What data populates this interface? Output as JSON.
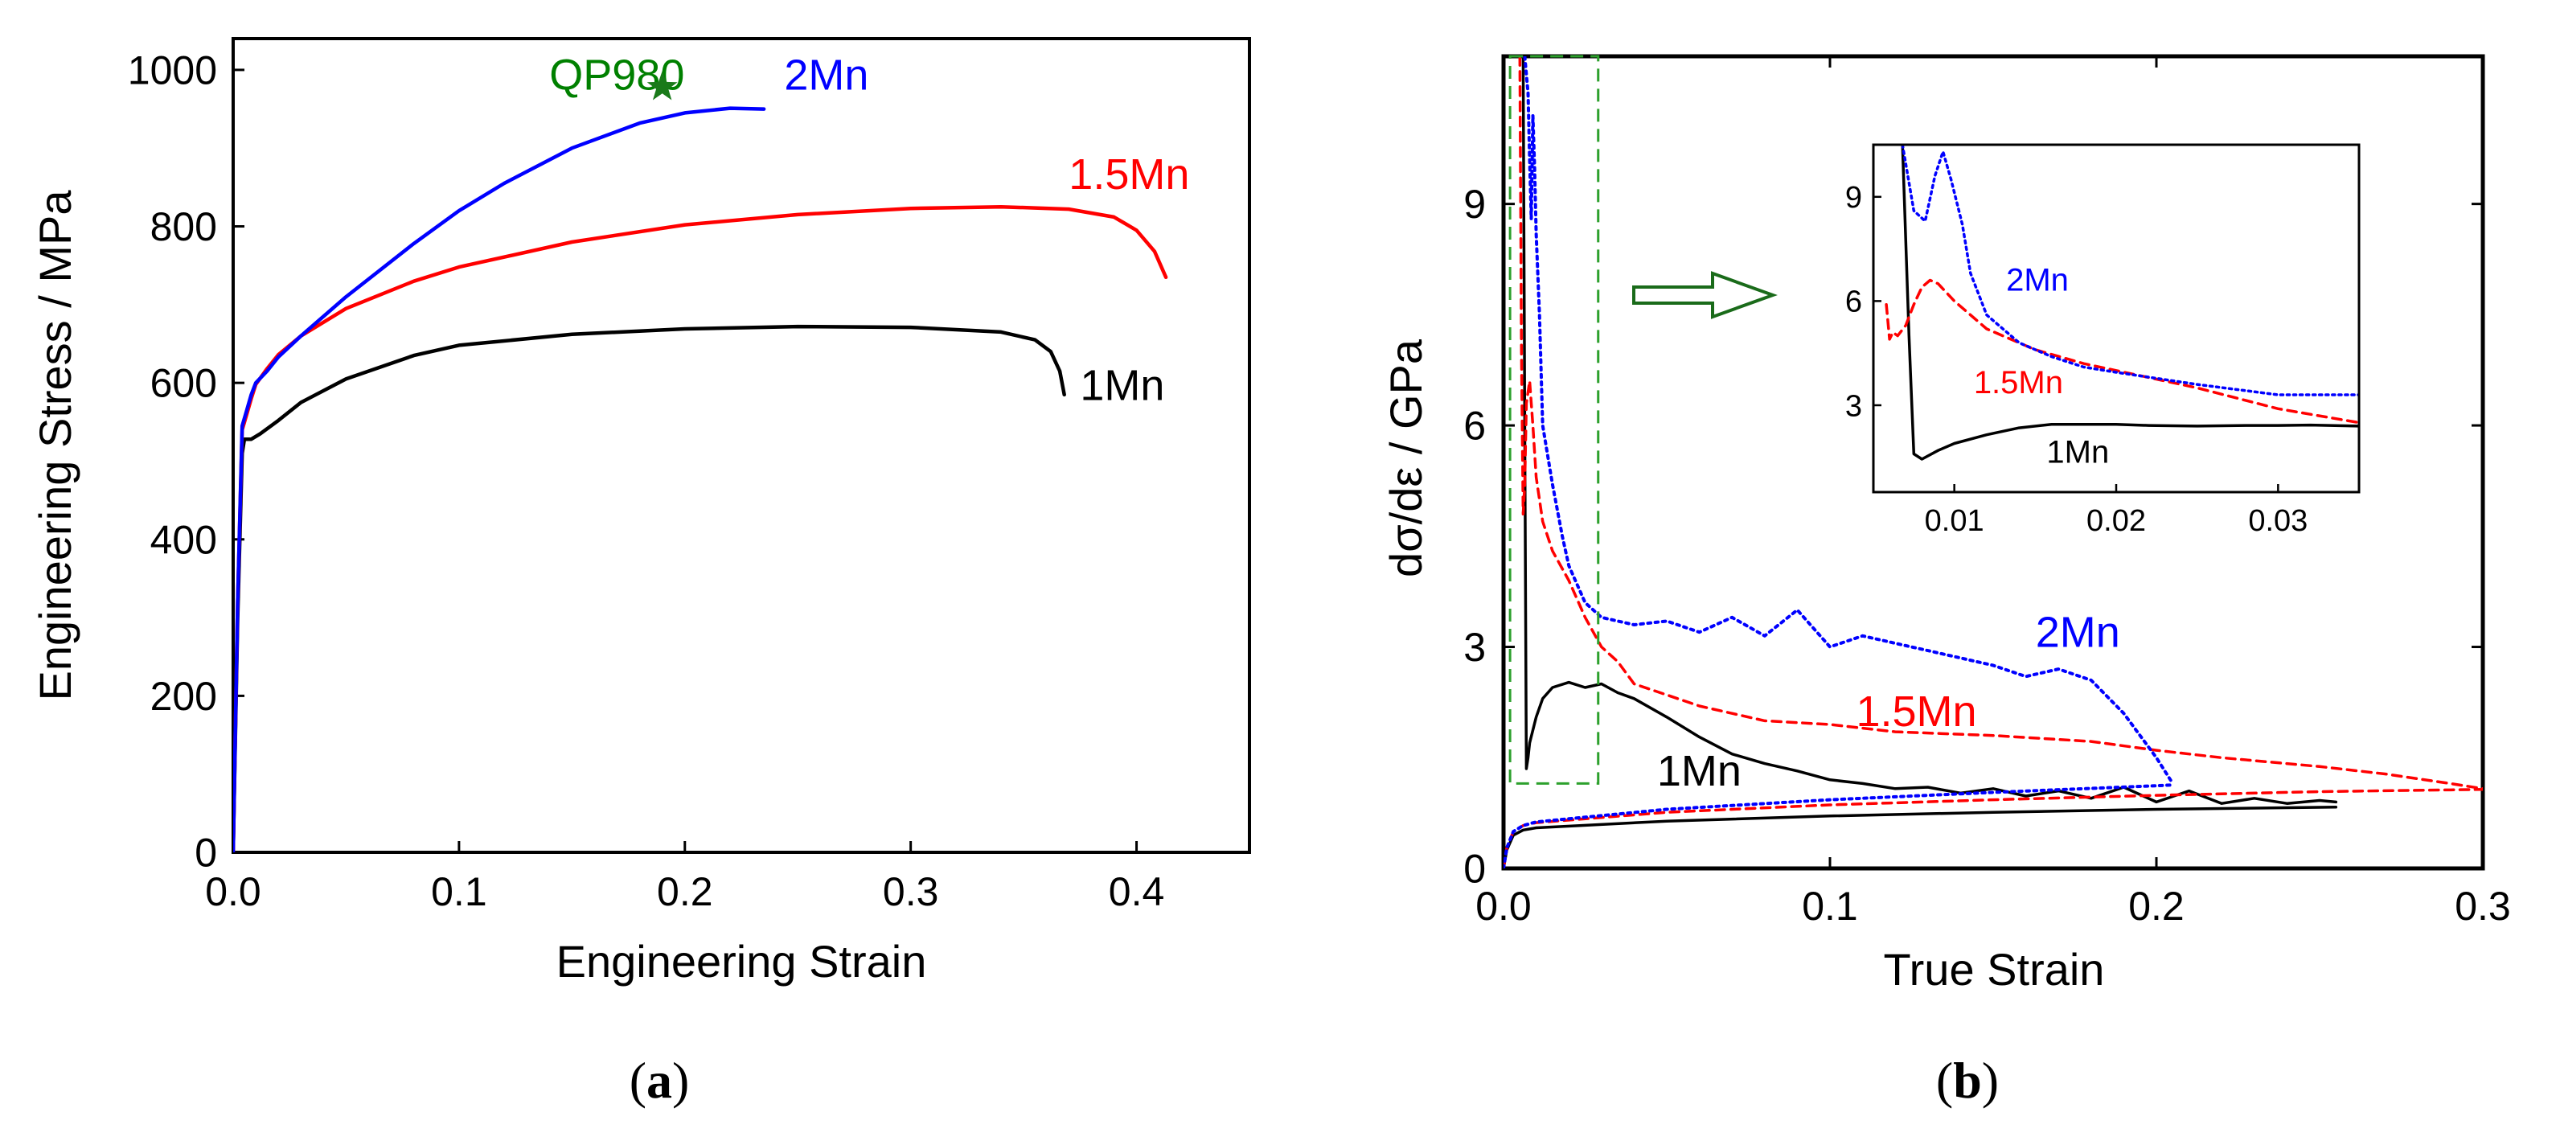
{
  "colors": {
    "black": "#000000",
    "red": "#ff0000",
    "blue": "#0000ff",
    "green": "#008000",
    "marker": "#1a7a1a"
  },
  "chart_data": [
    {
      "panel": "(a)",
      "type": "line",
      "title": "",
      "xlabel": "Engineering Strain",
      "ylabel": "Engineering Stress / MPa",
      "xlim": [
        0,
        0.45
      ],
      "ylim": [
        0,
        1040
      ],
      "xticks": [
        0.0,
        0.1,
        0.2,
        0.3,
        0.4
      ],
      "yticks": [
        0,
        200,
        400,
        600,
        800,
        1000
      ],
      "xtick_labels": [
        "0.0",
        "0.1",
        "0.2",
        "0.3",
        "0.4"
      ],
      "ytick_labels": [
        "0",
        "200",
        "400",
        "600",
        "800",
        "1000"
      ],
      "grid": false,
      "series": [
        {
          "name": "1Mn",
          "color": "#000000",
          "x": [
            0,
            0.002,
            0.004,
            0.005,
            0.008,
            0.012,
            0.02,
            0.03,
            0.05,
            0.08,
            0.1,
            0.15,
            0.2,
            0.25,
            0.3,
            0.34,
            0.355,
            0.362,
            0.366,
            0.368
          ],
          "y": [
            0,
            300,
            510,
            528,
            528,
            535,
            552,
            575,
            605,
            635,
            648,
            662,
            669,
            672,
            671,
            665,
            655,
            640,
            615,
            585
          ]
        },
        {
          "name": "1.5Mn",
          "color": "#ff0000",
          "x": [
            0,
            0.002,
            0.004,
            0.006,
            0.008,
            0.01,
            0.015,
            0.02,
            0.03,
            0.05,
            0.08,
            0.1,
            0.15,
            0.2,
            0.25,
            0.3,
            0.34,
            0.37,
            0.39,
            0.4,
            0.408,
            0.413
          ],
          "y": [
            0,
            320,
            540,
            560,
            580,
            598,
            618,
            636,
            660,
            695,
            730,
            748,
            780,
            802,
            815,
            823,
            825,
            822,
            812,
            795,
            768,
            735
          ]
        },
        {
          "name": "2Mn",
          "color": "#0000ff",
          "x": [
            0,
            0.002,
            0.004,
            0.006,
            0.008,
            0.01,
            0.015,
            0.02,
            0.03,
            0.05,
            0.08,
            0.1,
            0.12,
            0.15,
            0.18,
            0.2,
            0.22,
            0.235
          ],
          "y": [
            0,
            320,
            545,
            565,
            585,
            600,
            615,
            633,
            660,
            710,
            778,
            820,
            855,
            900,
            932,
            945,
            951,
            950
          ]
        }
      ],
      "annotations": [
        {
          "text": "QP980",
          "color": "#008000",
          "x": 0.14,
          "y": 975
        },
        {
          "text": "2Mn",
          "color": "#0000ff",
          "x": 0.244,
          "y": 975
        },
        {
          "text": "1.5Mn",
          "color": "#ff0000",
          "x": 0.37,
          "y": 848
        },
        {
          "text": "1Mn",
          "color": "#000000",
          "x": 0.375,
          "y": 578
        }
      ],
      "marker": {
        "x": 0.19,
        "y": 978,
        "symbol": "star",
        "color": "#1a7a1a"
      }
    },
    {
      "panel": "(b)",
      "type": "line",
      "title": "",
      "xlabel": "True Strain",
      "ylabel": "dσ/dε / GPa",
      "xlim": [
        0,
        0.3
      ],
      "ylim": [
        0,
        11
      ],
      "xticks": [
        0.0,
        0.1,
        0.2,
        0.3
      ],
      "yticks": [
        0,
        3,
        6,
        9
      ],
      "xtick_labels": [
        "0.0",
        "0.1",
        "0.2",
        "0.3"
      ],
      "ytick_labels": [
        "0",
        "3",
        "6",
        "9"
      ],
      "grid": false,
      "series": [
        {
          "name": "1Mn",
          "color": "#000000",
          "style": "solid",
          "kind": "hardening-rate",
          "x": [
            0.006,
            0.0065,
            0.007,
            0.0075,
            0.008,
            0.01,
            0.012,
            0.015,
            0.02,
            0.025,
            0.03,
            0.035,
            0.04,
            0.05,
            0.06,
            0.07,
            0.08,
            0.09,
            0.1,
            0.11,
            0.12,
            0.13,
            0.14,
            0.15,
            0.16,
            0.17,
            0.18,
            0.19,
            0.2,
            0.21,
            0.22,
            0.23,
            0.24,
            0.25,
            0.255
          ],
          "y": [
            11,
            6,
            1.35,
            1.5,
            1.7,
            2.05,
            2.3,
            2.45,
            2.52,
            2.45,
            2.5,
            2.38,
            2.3,
            2.05,
            1.78,
            1.55,
            1.42,
            1.32,
            1.2,
            1.15,
            1.08,
            1.1,
            1.02,
            1.08,
            0.98,
            1.05,
            0.95,
            1.1,
            0.9,
            1.05,
            0.88,
            0.95,
            0.88,
            0.92,
            0.9
          ]
        },
        {
          "name": "1.5Mn",
          "color": "#ff0000",
          "style": "dashed",
          "kind": "hardening-rate",
          "x": [
            0.005,
            0.0055,
            0.006,
            0.0065,
            0.007,
            0.008,
            0.009,
            0.01,
            0.012,
            0.015,
            0.02,
            0.025,
            0.03,
            0.035,
            0.04,
            0.05,
            0.06,
            0.07,
            0.08,
            0.1,
            0.12,
            0.15,
            0.18,
            0.2,
            0.22,
            0.25,
            0.27,
            0.29,
            0.3
          ],
          "y": [
            11,
            7,
            4.8,
            5.2,
            6.3,
            6.6,
            6.0,
            5.3,
            4.7,
            4.3,
            3.9,
            3.4,
            3.0,
            2.8,
            2.5,
            2.35,
            2.2,
            2.1,
            2.0,
            1.95,
            1.85,
            1.8,
            1.72,
            1.6,
            1.5,
            1.38,
            1.28,
            1.15,
            1.08
          ]
        },
        {
          "name": "2Mn",
          "color": "#0000ff",
          "style": "dotted",
          "kind": "hardening-rate",
          "x": [
            0.0065,
            0.0075,
            0.008,
            0.0085,
            0.009,
            0.0095,
            0.01,
            0.011,
            0.012,
            0.015,
            0.018,
            0.02,
            0.025,
            0.03,
            0.04,
            0.05,
            0.06,
            0.07,
            0.08,
            0.09,
            0.1,
            0.11,
            0.12,
            0.13,
            0.14,
            0.15,
            0.16,
            0.17,
            0.18,
            0.19,
            0.2,
            0.205
          ],
          "y": [
            11,
            10.5,
            9.6,
            8.8,
            10.2,
            9.5,
            8.6,
            7.5,
            6.0,
            5.2,
            4.5,
            4.1,
            3.6,
            3.4,
            3.3,
            3.35,
            3.2,
            3.4,
            3.15,
            3.5,
            3.0,
            3.15,
            3.05,
            2.95,
            2.85,
            2.75,
            2.6,
            2.7,
            2.55,
            2.1,
            1.5,
            1.15
          ]
        },
        {
          "name": "1Mn",
          "color": "#000000",
          "style": "solid",
          "kind": "true-stress",
          "x": [
            0,
            0.001,
            0.003,
            0.006,
            0.01,
            0.05,
            0.1,
            0.15,
            0.2,
            0.255
          ],
          "y": [
            0,
            0.25,
            0.45,
            0.52,
            0.55,
            0.64,
            0.71,
            0.76,
            0.8,
            0.83
          ]
        },
        {
          "name": "1.5Mn",
          "color": "#ff0000",
          "style": "dashed",
          "kind": "true-stress",
          "x": [
            0,
            0.001,
            0.003,
            0.006,
            0.01,
            0.05,
            0.1,
            0.15,
            0.2,
            0.25,
            0.3
          ],
          "y": [
            0,
            0.28,
            0.5,
            0.58,
            0.62,
            0.76,
            0.86,
            0.93,
            0.99,
            1.04,
            1.07
          ]
        },
        {
          "name": "2Mn",
          "color": "#0000ff",
          "style": "dotted",
          "kind": "true-stress",
          "x": [
            0,
            0.001,
            0.003,
            0.006,
            0.01,
            0.05,
            0.1,
            0.15,
            0.2,
            0.205
          ],
          "y": [
            0,
            0.28,
            0.5,
            0.58,
            0.63,
            0.8,
            0.93,
            1.03,
            1.12,
            1.13
          ]
        }
      ],
      "annotations": [
        {
          "text": "2Mn",
          "color": "#0000ff",
          "x": 0.163,
          "y": 3.0
        },
        {
          "text": "1.5Mn",
          "color": "#ff0000",
          "x": 0.108,
          "y": 1.93
        },
        {
          "text": "1Mn",
          "color": "#000000",
          "x": 0.047,
          "y": 1.12
        }
      ],
      "zoom_box": {
        "x": [
          0.002,
          0.029
        ],
        "y": [
          1.15,
          11
        ]
      },
      "inset": {
        "xlim": [
          0.005,
          0.035
        ],
        "ylim": [
          0.5,
          10.5
        ],
        "xticks": [
          0.01,
          0.02,
          0.03
        ],
        "yticks": [
          3,
          6,
          9
        ],
        "xtick_labels": [
          "0.01",
          "0.02",
          "0.03"
        ],
        "ytick_labels": [
          "3",
          "6",
          "9"
        ],
        "series": [
          {
            "name": "1Mn",
            "color": "#000000",
            "style": "solid",
            "x": [
              0.0068,
              0.0072,
              0.0075,
              0.008,
              0.009,
              0.01,
              0.012,
              0.014,
              0.016,
              0.018,
              0.02,
              0.022,
              0.025,
              0.028,
              0.03,
              0.032,
              0.035
            ],
            "y": [
              10.5,
              5.0,
              1.6,
              1.45,
              1.7,
              1.9,
              2.15,
              2.35,
              2.45,
              2.45,
              2.45,
              2.42,
              2.4,
              2.42,
              2.42,
              2.43,
              2.4
            ]
          },
          {
            "name": "1.5Mn",
            "color": "#ff0000",
            "style": "dashed",
            "x": [
              0.0058,
              0.006,
              0.0062,
              0.0065,
              0.007,
              0.0075,
              0.008,
              0.0085,
              0.009,
              0.01,
              0.012,
              0.015,
              0.018,
              0.02,
              0.025,
              0.03,
              0.035
            ],
            "y": [
              5.9,
              4.9,
              5.1,
              5.0,
              5.3,
              5.9,
              6.4,
              6.6,
              6.5,
              6.0,
              5.2,
              4.6,
              4.2,
              4.0,
              3.5,
              2.9,
              2.5
            ]
          },
          {
            "name": "2Mn",
            "color": "#0000ff",
            "style": "dotted",
            "x": [
              0.0068,
              0.0075,
              0.0082,
              0.0088,
              0.0093,
              0.0098,
              0.0105,
              0.011,
              0.012,
              0.014,
              0.016,
              0.018,
              0.02,
              0.025,
              0.03,
              0.035
            ],
            "y": [
              10.5,
              8.6,
              8.3,
              9.6,
              10.3,
              9.5,
              8.2,
              6.8,
              5.6,
              4.8,
              4.4,
              4.1,
              3.95,
              3.6,
              3.3,
              3.3
            ]
          }
        ],
        "annotations": [
          {
            "text": "2Mn",
            "color": "#0000ff",
            "x": 0.0132,
            "y": 6.3
          },
          {
            "text": "1.5Mn",
            "color": "#ff0000",
            "x": 0.0112,
            "y": 3.35
          },
          {
            "text": "1Mn",
            "color": "#000000",
            "x": 0.0157,
            "y": 1.35
          }
        ]
      }
    }
  ],
  "captions": {
    "a": "a",
    "b": "b"
  }
}
